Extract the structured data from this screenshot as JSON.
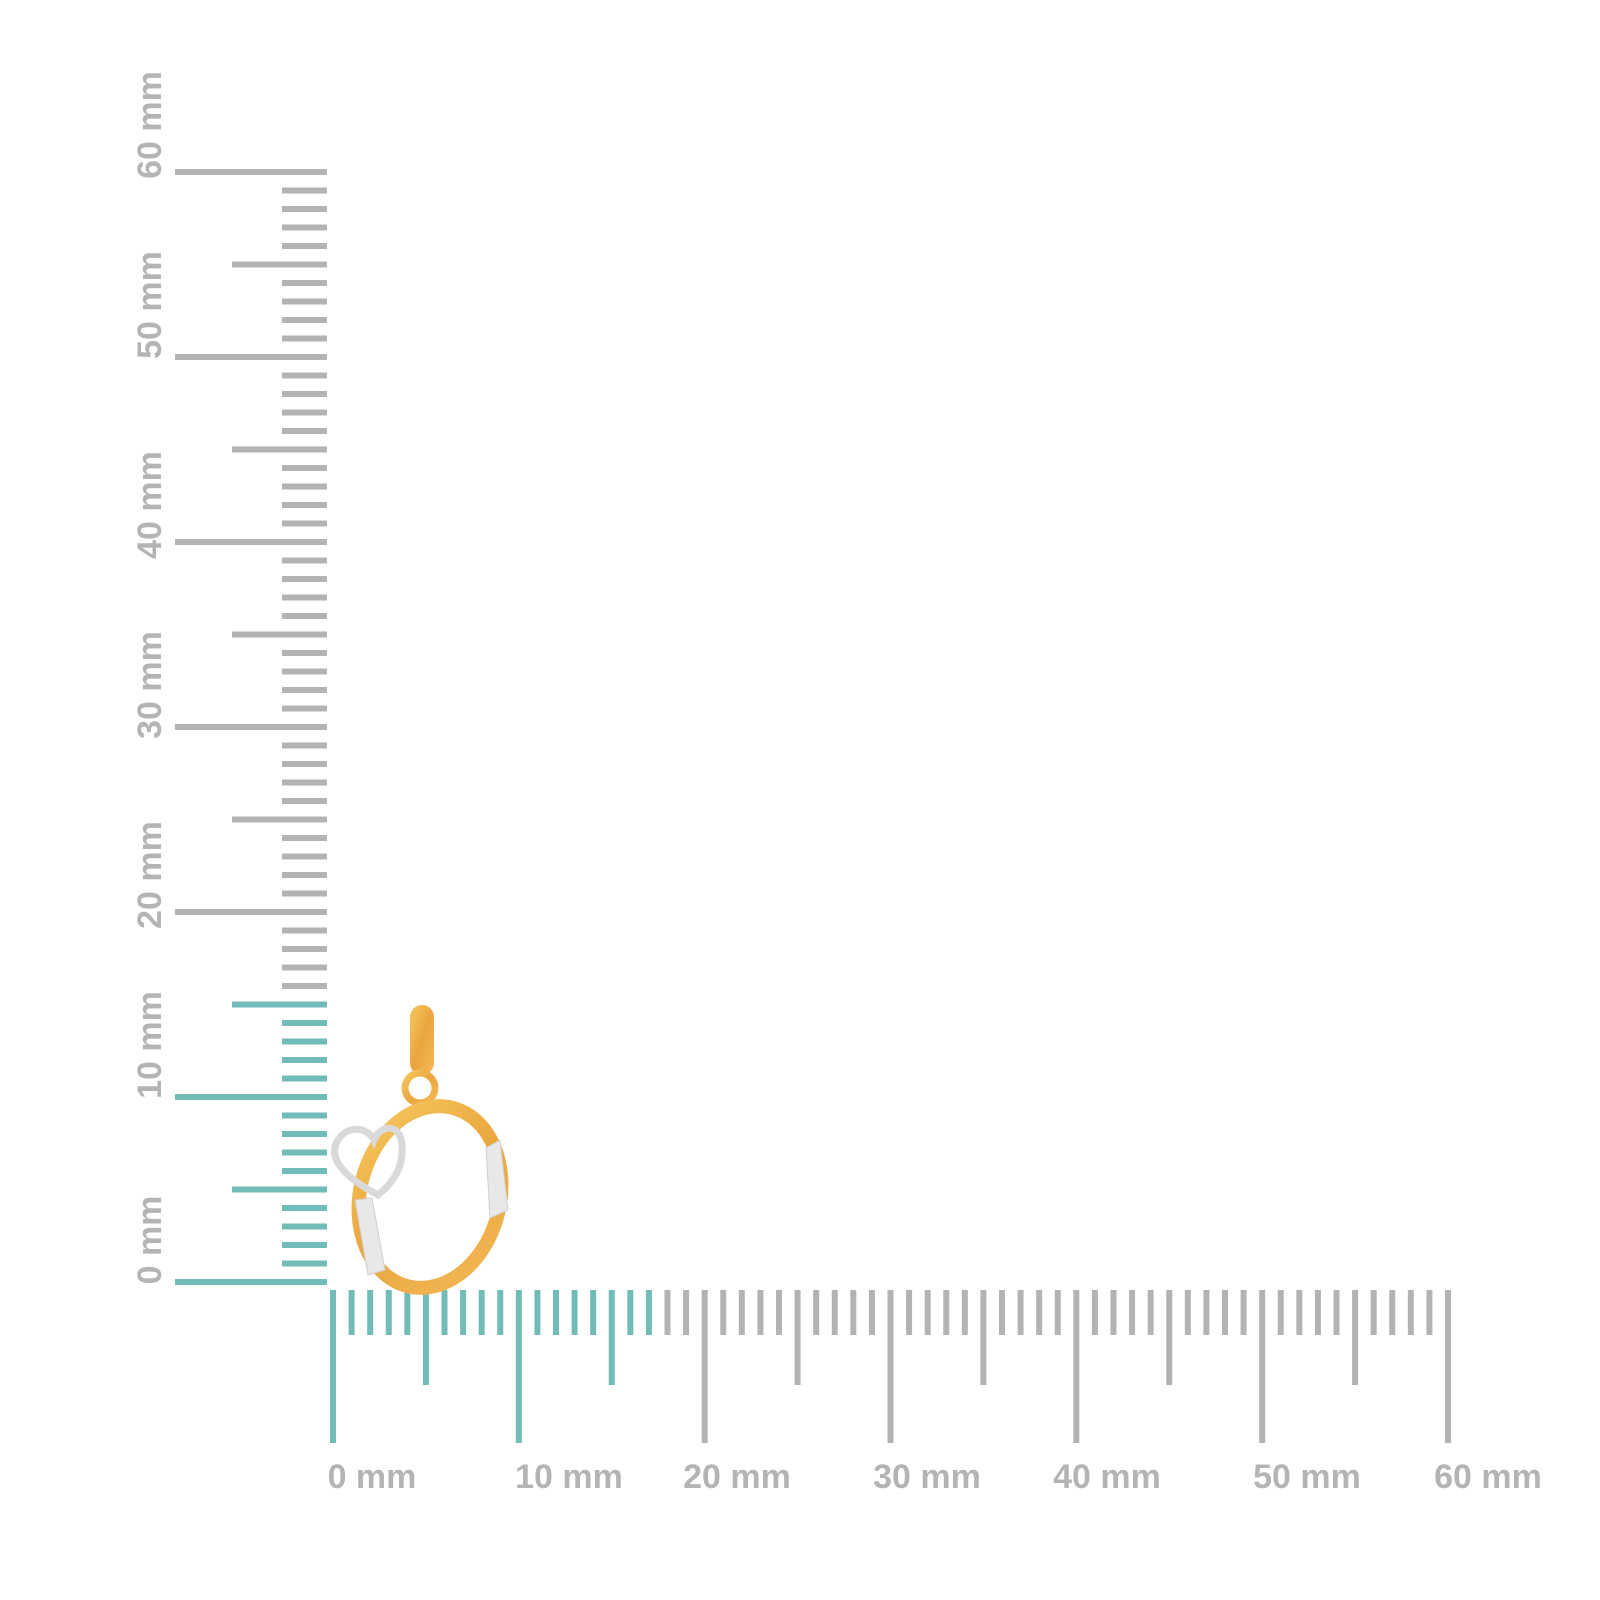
{
  "rulers": {
    "unit": "mm",
    "range_mm": [
      0,
      60
    ],
    "horizontal_labels": [
      "0 mm",
      "10 mm",
      "20 mm",
      "30 mm",
      "40 mm",
      "50 mm",
      "60 mm"
    ],
    "vertical_labels": [
      "0 mm",
      "10 mm",
      "20 mm",
      "30 mm",
      "40 mm",
      "50 mm",
      "60 mm"
    ],
    "highlight_vertical_to_mm": 15,
    "highlight_horizontal_to_mm": 17
  },
  "product": {
    "type": "pendant",
    "description_visible": "initial O pendant with heart"
  },
  "colors": {
    "ruler_gray": "#b3b3b3",
    "ruler_teal": "#72bcb7",
    "gold": "#f0b04a",
    "white_gold": "#e6e6e6"
  }
}
